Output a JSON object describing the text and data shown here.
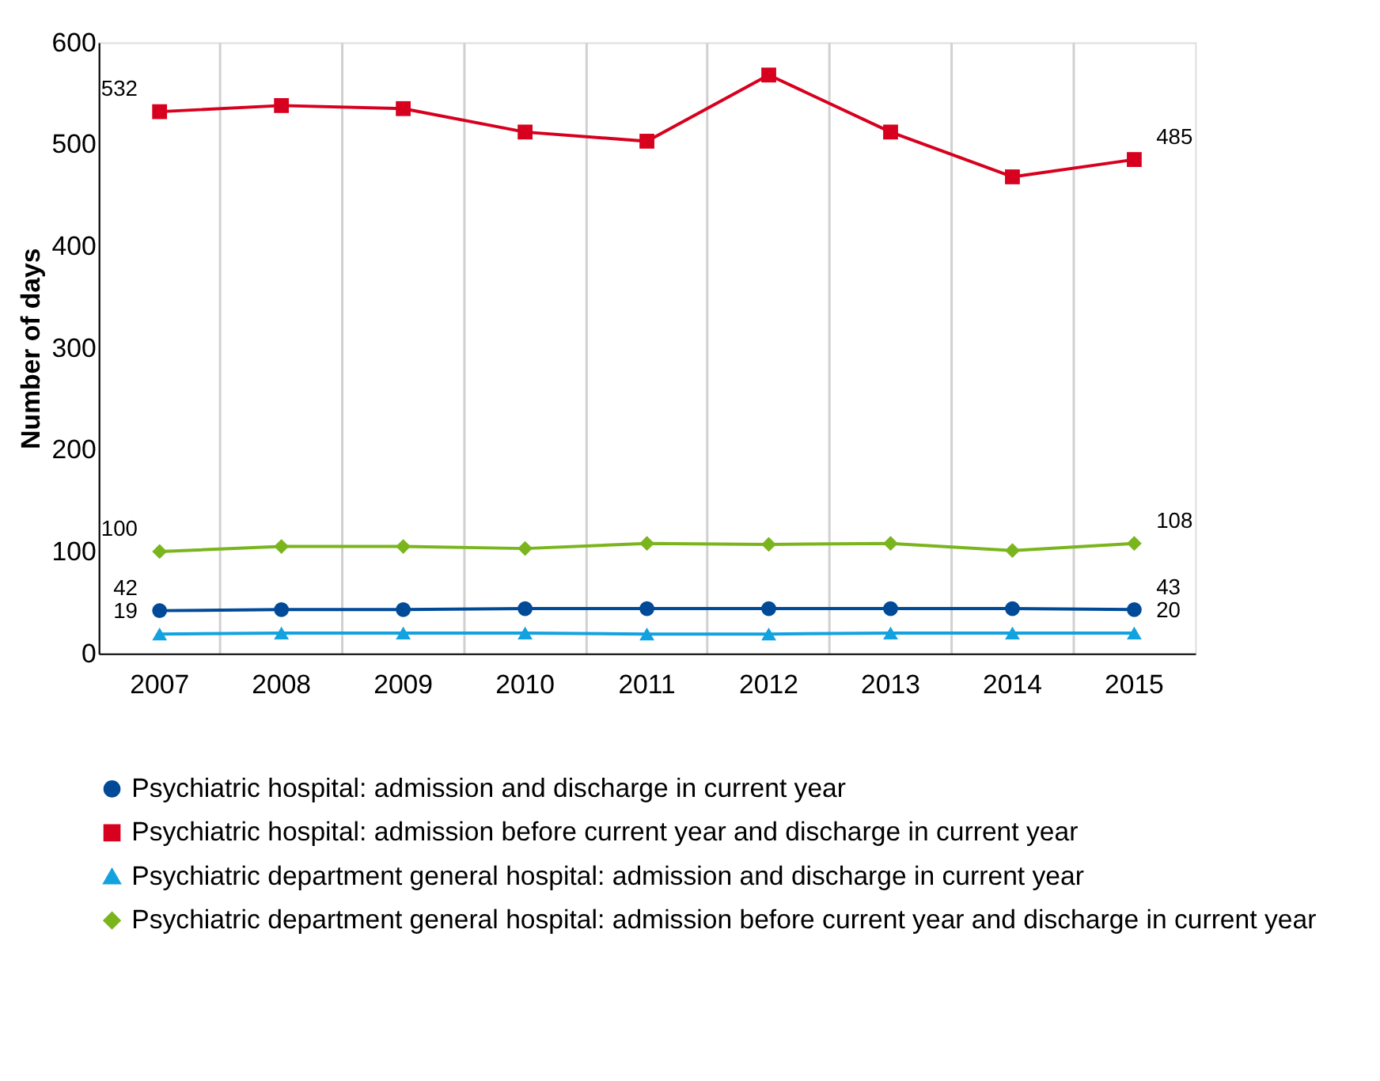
{
  "chart_data": {
    "type": "line",
    "ylabel": "Number of days",
    "categories": [
      "2007",
      "2008",
      "2009",
      "2010",
      "2011",
      "2012",
      "2013",
      "2014",
      "2015"
    ],
    "ylim": [
      0,
      600
    ],
    "yticks": [
      0,
      100,
      200,
      300,
      400,
      500,
      600
    ],
    "grid": "x",
    "legend": "bottom",
    "line_style": "solid",
    "series": [
      {
        "name": "Psychiatric hospital: admission and discharge in current year",
        "color": "#004a98",
        "marker": "circle",
        "values": [
          42,
          43,
          43,
          44,
          44,
          44,
          44,
          44,
          43
        ],
        "value_labels": [
          "42",
          null,
          null,
          null,
          null,
          null,
          null,
          null,
          "43"
        ]
      },
      {
        "name": "Psychiatric hospital: admission before current year and discharge in current year",
        "color": "#d7001e",
        "marker": "square",
        "values": [
          532,
          538,
          535,
          512,
          503,
          568,
          512,
          468,
          485
        ],
        "value_labels": [
          "532",
          null,
          null,
          null,
          null,
          null,
          null,
          null,
          "485"
        ]
      },
      {
        "name": "Psychiatric department general hospital: admission and discharge in current year",
        "color": "#12a2e0",
        "marker": "triangle",
        "values": [
          19,
          20,
          20,
          20,
          19,
          19,
          20,
          20,
          20
        ],
        "value_labels": [
          "19",
          null,
          null,
          null,
          null,
          null,
          null,
          null,
          "20"
        ]
      },
      {
        "name": "Psychiatric department general hospital: admission before current year and discharge in current year",
        "color": "#7ab51d",
        "marker": "diamond",
        "values": [
          100,
          105,
          105,
          103,
          108,
          107,
          108,
          101,
          108
        ],
        "value_labels": [
          "100",
          null,
          null,
          null,
          null,
          null,
          null,
          null,
          "108"
        ]
      }
    ]
  }
}
